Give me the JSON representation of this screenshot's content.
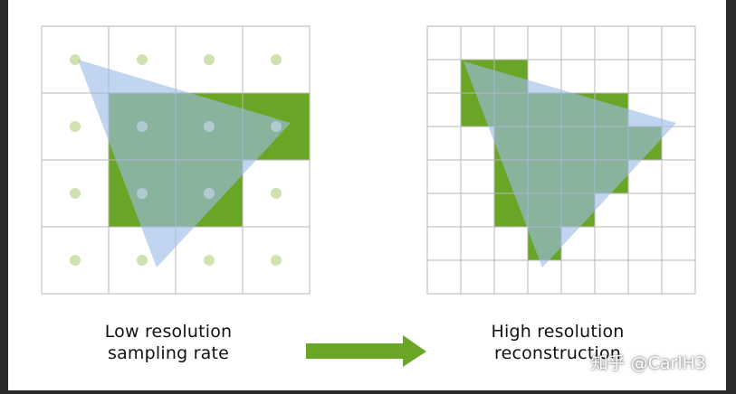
{
  "colors": {
    "grid_line": "#b7b7b7",
    "green_fill": "#6aa625",
    "triangle_fill": "#9dbbe6",
    "sample_dot": "#cfe2b0",
    "arrow": "#6aa625"
  },
  "low_res": {
    "caption_line1": "Low resolution",
    "caption_line2": "sampling rate"
  },
  "high_res": {
    "caption_line1": "High resolution",
    "caption_line2": "reconstruction"
  },
  "watermark": "知乎 @CarlH3"
}
